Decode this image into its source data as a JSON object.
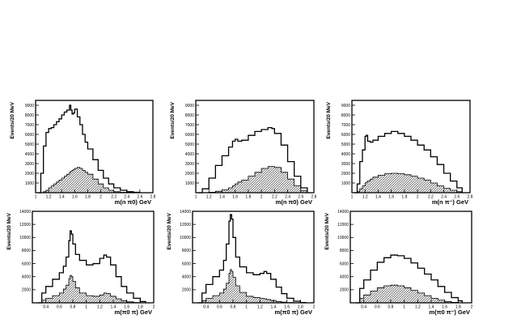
{
  "chart_data": [
    {
      "type": "line",
      "xlabel": "m(n π0) GeV",
      "ylabel": "Events/20 MeV",
      "xlim": [
        1.0,
        2.8
      ],
      "ylim": [
        0,
        9500
      ],
      "xticks": [
        "1",
        "1.2",
        "1.4",
        "1.6",
        "1.8",
        "2",
        "2.2",
        "2.4",
        "2.6",
        "2.8"
      ],
      "yticks": [
        "1000",
        "2000",
        "3000",
        "4000",
        "5000",
        "6000",
        "7000",
        "8000",
        "9000"
      ],
      "x": [
        1.04,
        1.08,
        1.12,
        1.16,
        1.2,
        1.24,
        1.28,
        1.32,
        1.36,
        1.4,
        1.44,
        1.48,
        1.52,
        1.54,
        1.56,
        1.58,
        1.6,
        1.64,
        1.68,
        1.72,
        1.76,
        1.8,
        1.88,
        1.96,
        2.04,
        2.12,
        2.2,
        2.3,
        2.4,
        2.5,
        2.6
      ],
      "series": [
        {
          "values": [
            0,
            2000,
            4800,
            6200,
            6600,
            6700,
            7000,
            7300,
            7600,
            8000,
            8300,
            8500,
            9000,
            8500,
            8100,
            8200,
            8600,
            7800,
            7000,
            6000,
            5200,
            4500,
            3400,
            2300,
            1500,
            900,
            500,
            250,
            100,
            40,
            0
          ]
        },
        {
          "values": [
            0,
            0,
            100,
            250,
            500,
            700,
            900,
            1100,
            1300,
            1500,
            1700,
            1900,
            2100,
            2200,
            2300,
            2400,
            2500,
            2600,
            2500,
            2300,
            2100,
            1900,
            1400,
            900,
            500,
            250,
            100,
            40,
            0,
            0,
            0
          ]
        }
      ]
    },
    {
      "type": "line",
      "xlabel": "m(n π0) GeV",
      "ylabel": "Events/20 MeV",
      "xlim": [
        1.0,
        2.8
      ],
      "ylim": [
        0,
        9500
      ],
      "xticks": [
        "1",
        "1.2",
        "1.4",
        "1.6",
        "1.8",
        "2",
        "2.2",
        "2.4",
        "2.6",
        "2.8"
      ],
      "yticks": [
        "1000",
        "2000",
        "3000",
        "4000",
        "5000",
        "6000",
        "7000",
        "8000",
        "9000"
      ],
      "x": [
        1.04,
        1.1,
        1.2,
        1.3,
        1.4,
        1.5,
        1.56,
        1.6,
        1.64,
        1.7,
        1.8,
        1.9,
        2.0,
        2.1,
        2.16,
        2.2,
        2.3,
        2.4,
        2.5,
        2.6,
        2.7
      ],
      "series": [
        {
          "values": [
            0,
            400,
            1500,
            2800,
            3800,
            4700,
            5300,
            5500,
            5300,
            5400,
            5900,
            6300,
            6500,
            6700,
            6600,
            6100,
            4900,
            3200,
            1700,
            500,
            0
          ]
        },
        {
          "values": [
            0,
            0,
            50,
            150,
            300,
            500,
            700,
            900,
            1100,
            1300,
            1700,
            2100,
            2500,
            2700,
            2700,
            2600,
            2100,
            1400,
            700,
            200,
            0
          ]
        }
      ]
    },
    {
      "type": "line",
      "xlabel": "m(n π⁻) GeV",
      "ylabel": "Events/20 MeV",
      "xlim": [
        1.0,
        2.8
      ],
      "ylim": [
        0,
        9500
      ],
      "xticks": [
        "1",
        "1.2",
        "1.4",
        "1.6",
        "1.8",
        "2",
        "2.2",
        "2.4",
        "2.6",
        "2.8"
      ],
      "yticks": [
        "1000",
        "2000",
        "3000",
        "4000",
        "5000",
        "6000",
        "7000",
        "8000",
        "9000"
      ],
      "x": [
        1.04,
        1.08,
        1.12,
        1.16,
        1.2,
        1.22,
        1.24,
        1.28,
        1.32,
        1.4,
        1.5,
        1.6,
        1.7,
        1.8,
        1.9,
        2.0,
        2.1,
        2.2,
        2.3,
        2.4,
        2.5,
        2.6,
        2.68
      ],
      "series": [
        {
          "values": [
            0,
            900,
            3200,
            4400,
            5800,
            5900,
            5300,
            5200,
            5400,
            5800,
            6100,
            6300,
            6100,
            5800,
            5400,
            4900,
            4400,
            3700,
            2900,
            2000,
            1200,
            500,
            0
          ]
        },
        {
          "values": [
            0,
            100,
            400,
            700,
            1000,
            1100,
            1200,
            1400,
            1600,
            1800,
            1950,
            2000,
            1950,
            1850,
            1700,
            1500,
            1300,
            1000,
            700,
            450,
            250,
            100,
            0
          ]
        }
      ]
    },
    {
      "type": "line",
      "xlabel": "m(π0 π) GeV",
      "ylabel": "Events/20 MeV",
      "xlim": [
        0.2,
        2.0
      ],
      "ylim": [
        0,
        14000
      ],
      "xticks": [
        "0.4",
        "0.6",
        "0.8",
        "1",
        "1.2",
        "1.4",
        "1.6",
        "1.8",
        "2"
      ],
      "yticks": [
        "2000",
        "4000",
        "6000",
        "8000",
        "10000",
        "12000",
        "14000"
      ],
      "x": [
        0.28,
        0.34,
        0.4,
        0.5,
        0.6,
        0.66,
        0.7,
        0.74,
        0.76,
        0.78,
        0.8,
        0.84,
        0.9,
        1.0,
        1.1,
        1.2,
        1.26,
        1.3,
        1.36,
        1.44,
        1.52,
        1.6,
        1.7,
        1.8,
        1.88
      ],
      "series": [
        {
          "values": [
            0,
            1500,
            2500,
            3600,
            4600,
            5600,
            7000,
            9500,
            11000,
            10500,
            9000,
            7400,
            6500,
            5800,
            6000,
            6800,
            7300,
            7000,
            5800,
            4000,
            2500,
            1500,
            700,
            200,
            0
          ]
        },
        {
          "values": [
            0,
            400,
            700,
            1100,
            1500,
            2100,
            2700,
            3700,
            4200,
            4000,
            3300,
            2300,
            1500,
            1100,
            1000,
            1200,
            1500,
            1400,
            1000,
            600,
            300,
            150,
            50,
            0,
            0
          ]
        }
      ]
    },
    {
      "type": "line",
      "xlabel": "m(π0 π) GeV",
      "ylabel": "Events/20 MeV",
      "xlim": [
        0.2,
        2.0
      ],
      "ylim": [
        0,
        14000
      ],
      "xticks": [
        "0.4",
        "0.6",
        "0.8",
        "1",
        "1.2",
        "1.4",
        "1.6",
        "1.8",
        "2"
      ],
      "yticks": [
        "2000",
        "4000",
        "6000",
        "8000",
        "10000",
        "12000",
        "14000"
      ],
      "x": [
        0.28,
        0.34,
        0.4,
        0.5,
        0.6,
        0.66,
        0.7,
        0.74,
        0.76,
        0.78,
        0.8,
        0.84,
        0.9,
        1.0,
        1.1,
        1.2,
        1.26,
        1.3,
        1.36,
        1.44,
        1.52,
        1.6,
        1.7,
        1.8,
        1.88
      ],
      "series": [
        {
          "values": [
            0,
            1500,
            2800,
            4000,
            5000,
            6500,
            9000,
            12500,
            13500,
            12800,
            10000,
            7000,
            5500,
            4600,
            4300,
            4500,
            4800,
            4500,
            3600,
            2400,
            1400,
            700,
            250,
            50,
            0
          ]
        },
        {
          "values": [
            0,
            300,
            700,
            1100,
            1500,
            2100,
            3000,
            4500,
            5100,
            4800,
            3900,
            2600,
            1600,
            1000,
            800,
            700,
            600,
            500,
            350,
            200,
            100,
            40,
            0,
            0,
            0
          ]
        }
      ]
    },
    {
      "type": "line",
      "xlabel": "m(π0 π⁻) GeV",
      "ylabel": "Events/20 MeV",
      "xlim": [
        0.2,
        2.0
      ],
      "ylim": [
        0,
        14000
      ],
      "xticks": [
        "0.4",
        "0.6",
        "0.8",
        "1",
        "1.2",
        "1.4",
        "1.6",
        "1.8",
        "2"
      ],
      "yticks": [
        "2000",
        "4000",
        "6000",
        "8000",
        "10000",
        "12000",
        "14000"
      ],
      "x": [
        0.28,
        0.34,
        0.4,
        0.5,
        0.6,
        0.7,
        0.8,
        0.9,
        1.0,
        1.1,
        1.2,
        1.3,
        1.4,
        1.5,
        1.6,
        1.7,
        1.8,
        1.86
      ],
      "series": [
        {
          "values": [
            0,
            2200,
            3500,
            5000,
            6200,
            6900,
            7300,
            7200,
            6800,
            6100,
            5300,
            4400,
            3500,
            2500,
            1600,
            800,
            300,
            0
          ]
        },
        {
          "values": [
            0,
            700,
            1200,
            1800,
            2300,
            2600,
            2700,
            2600,
            2300,
            1900,
            1500,
            1100,
            700,
            400,
            200,
            80,
            20,
            0
          ]
        }
      ]
    }
  ]
}
